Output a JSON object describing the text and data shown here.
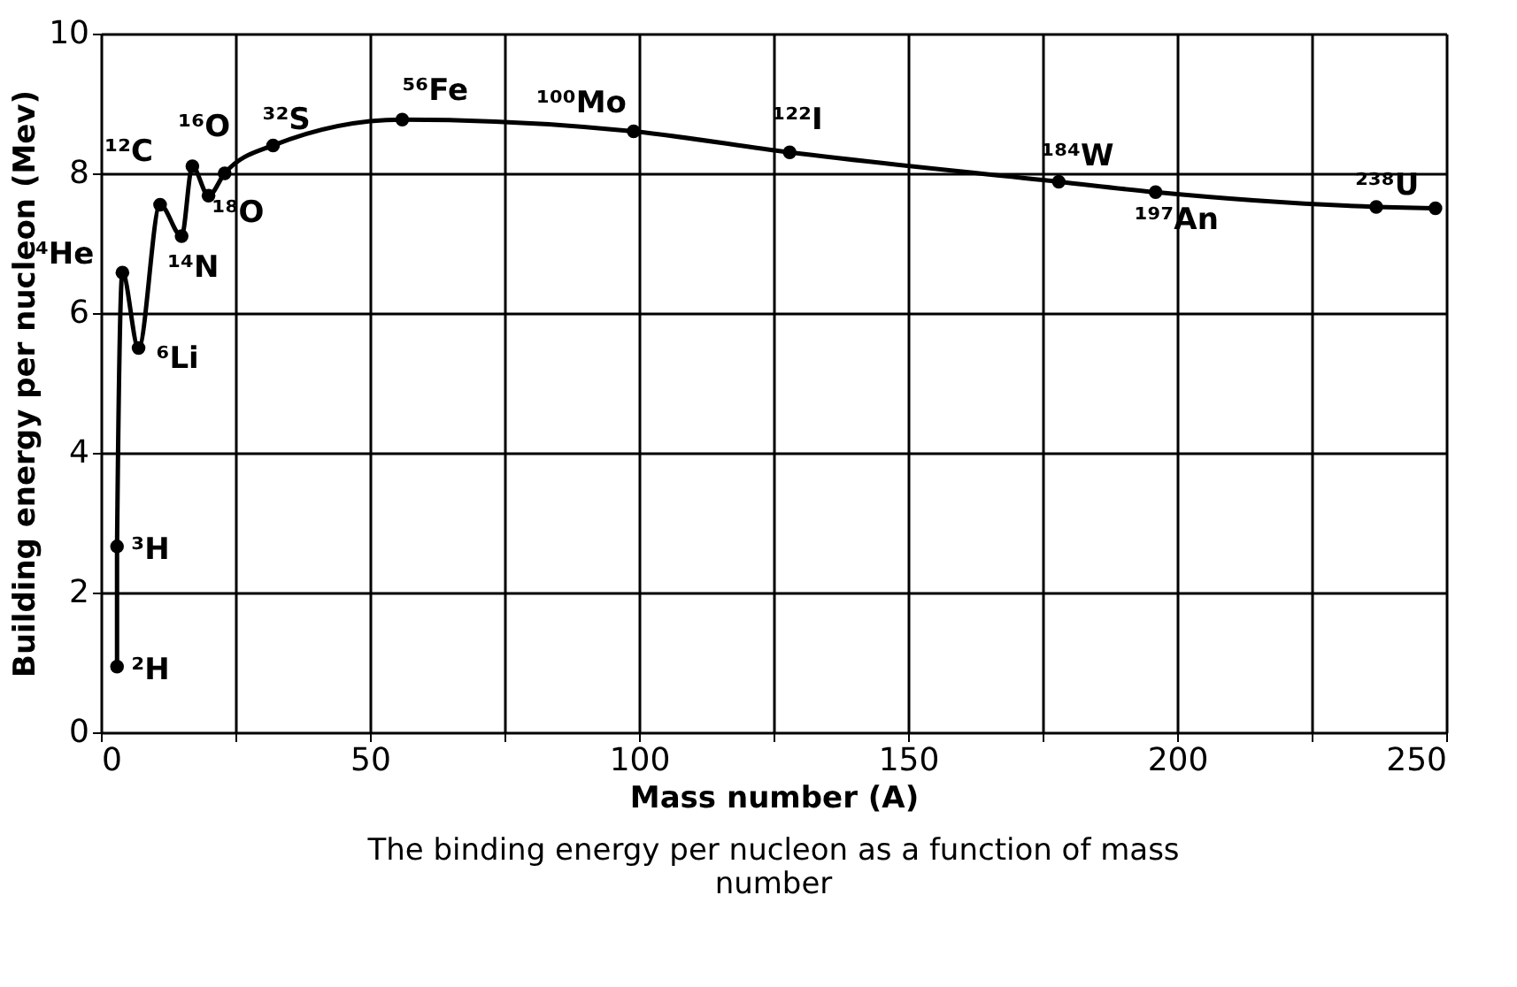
{
  "chart_data": {
    "type": "line",
    "xlabel": "Mass number (A)",
    "ylabel": "Building energy per nucleon (Mev)",
    "x": [
      3,
      3,
      4,
      7,
      11,
      15,
      17,
      20,
      23,
      32,
      56,
      99,
      128,
      178,
      196,
      237,
      248
    ],
    "series": [
      {
        "color": "#000000",
        "values": [
          0.94,
          2.66,
          6.58,
          5.5,
          7.55,
          7.1,
          8.1,
          7.68,
          8.0,
          8.4,
          8.77,
          8.6,
          8.3,
          7.88,
          7.73,
          7.52,
          7.5
        ]
      }
    ],
    "marker": "circle",
    "line_style": "solid",
    "grid": true,
    "xlim": [
      0,
      250
    ],
    "xticks": [
      0,
      {
        "value": 25,
        "label": null
      },
      50,
      {
        "value": 75,
        "label": null
      },
      100,
      {
        "value": 125,
        "label": null
      },
      150,
      {
        "value": 175,
        "label": null
      },
      200,
      {
        "value": 225,
        "label": null
      },
      250
    ],
    "ylim": [
      0,
      10
    ],
    "yticks": [
      0,
      2,
      4,
      6,
      8,
      10
    ],
    "annotations": [
      {
        "text": "²H",
        "x": 3,
        "y": 0.94
      },
      {
        "text": "³H",
        "x": 3,
        "y": 2.66
      },
      {
        "text": "⁴He",
        "x": 4,
        "y": 6.58
      },
      {
        "text": "⁶Li",
        "x": 7,
        "y": 5.5
      },
      {
        "text": "¹²C",
        "x": 11,
        "y": 7.55
      },
      {
        "text": "¹⁴N",
        "x": 15,
        "y": 7.1
      },
      {
        "text": "¹⁶O",
        "x": 17,
        "y": 8.1
      },
      {
        "text": "¹⁸O",
        "x": 20,
        "y": 7.68
      },
      {
        "text": "³²S",
        "x": 32,
        "y": 8.4
      },
      {
        "text": "⁵⁶Fe",
        "x": 56,
        "y": 8.77
      },
      {
        "text": "¹⁰⁰Mo",
        "x": 99,
        "y": 8.6
      },
      {
        "text": "¹²²I",
        "x": 128,
        "y": 8.3
      },
      {
        "text": "¹⁸⁴W",
        "x": 178,
        "y": 7.88
      },
      {
        "text": "¹⁹⁷An",
        "x": 196,
        "y": 7.73
      },
      {
        "text": "²³⁸U",
        "x": 237,
        "y": 7.52
      },
      "The binding energy per nucleon as a function of mass number"
    ]
  }
}
